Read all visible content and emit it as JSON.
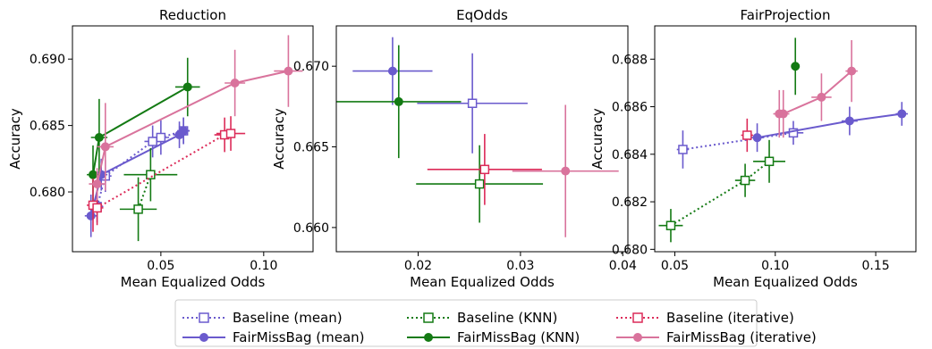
{
  "colors": {
    "Baseline (mean)": "#6a5acd",
    "FairMissBag (mean)": "#6a5acd",
    "Baseline (KNN)": "#137a13",
    "FairMissBag (KNN)": "#137a13",
    "Baseline (iterative)": "#dc2a58",
    "FairMissBag (iterative)": "#d9739c"
  },
  "chart_data": [
    {
      "type": "scatter",
      "title": "Reduction",
      "xlabel": "Mean Equalized Odds",
      "ylabel": "Accuracy",
      "xlim": [
        0.007,
        0.124
      ],
      "ylim": [
        0.6755,
        0.6925
      ],
      "xticks": [
        0.05,
        0.1
      ],
      "xtick_labels": [
        "0.05",
        "0.10"
      ],
      "yticks": [
        0.68,
        0.685,
        0.69
      ],
      "ytick_labels": [
        "0.680",
        "0.685",
        "0.690"
      ],
      "grid": false,
      "series": [
        {
          "name": "Baseline (mean)",
          "style": "dotted",
          "marker": "open-square",
          "points": [
            {
              "x": 0.019,
              "y": 0.6789,
              "xerr": 0.003,
              "yerr": 0.0012
            },
            {
              "x": 0.023,
              "y": 0.6812,
              "xerr": 0.003,
              "yerr": 0.0012
            },
            {
              "x": 0.046,
              "y": 0.6838,
              "xerr": 0.004,
              "yerr": 0.0012
            },
            {
              "x": 0.05,
              "y": 0.6841,
              "xerr": 0.004,
              "yerr": 0.0013
            },
            {
              "x": 0.061,
              "y": 0.6846,
              "xerr": 0.003,
              "yerr": 0.001
            }
          ]
        },
        {
          "name": "FairMissBag (mean)",
          "style": "solid",
          "marker": "filled-circle",
          "points": [
            {
              "x": 0.016,
              "y": 0.6782,
              "xerr": 0.003,
              "yerr": 0.0016
            },
            {
              "x": 0.021,
              "y": 0.6813,
              "xerr": 0.003,
              "yerr": 0.0012
            },
            {
              "x": 0.059,
              "y": 0.6843,
              "xerr": 0.003,
              "yerr": 0.001
            },
            {
              "x": 0.061,
              "y": 0.6846,
              "xerr": 0.003,
              "yerr": 0.001
            }
          ]
        },
        {
          "name": "Baseline (KNN)",
          "style": "dotted",
          "marker": "open-square",
          "points": [
            {
              "x": 0.039,
              "y": 0.6787,
              "xerr": 0.009,
              "yerr": 0.0024
            },
            {
              "x": 0.045,
              "y": 0.6813,
              "xerr": 0.013,
              "yerr": 0.002
            }
          ]
        },
        {
          "name": "FairMissBag (KNN)",
          "style": "solid",
          "marker": "filled-circle",
          "points": [
            {
              "x": 0.017,
              "y": 0.6813,
              "xerr": 0.003,
              "yerr": 0.0022
            },
            {
              "x": 0.02,
              "y": 0.6841,
              "xerr": 0.004,
              "yerr": 0.0029
            },
            {
              "x": 0.063,
              "y": 0.6879,
              "xerr": 0.006,
              "yerr": 0.0022
            }
          ]
        },
        {
          "name": "Baseline (iterative)",
          "style": "dotted",
          "marker": "open-square",
          "points": [
            {
              "x": 0.017,
              "y": 0.679,
              "xerr": 0.003,
              "yerr": 0.002
            },
            {
              "x": 0.019,
              "y": 0.6788,
              "xerr": 0.003,
              "yerr": 0.0013
            },
            {
              "x": 0.081,
              "y": 0.6843,
              "xerr": 0.005,
              "yerr": 0.0013
            },
            {
              "x": 0.084,
              "y": 0.6844,
              "xerr": 0.007,
              "yerr": 0.0013
            }
          ]
        },
        {
          "name": "FairMissBag (iterative)",
          "style": "solid",
          "marker": "filled-circle",
          "points": [
            {
              "x": 0.019,
              "y": 0.6806,
              "xerr": 0.004,
              "yerr": 0.0012
            },
            {
              "x": 0.023,
              "y": 0.6834,
              "xerr": 0.004,
              "yerr": 0.0033
            },
            {
              "x": 0.086,
              "y": 0.6882,
              "xerr": 0.005,
              "yerr": 0.0025
            },
            {
              "x": 0.112,
              "y": 0.6891,
              "xerr": 0.007,
              "yerr": 0.0027
            }
          ]
        }
      ]
    },
    {
      "type": "scatter",
      "title": "EqOdds",
      "xlabel": "Mean Equalized Odds",
      "ylabel": "Accuracy",
      "xlim": [
        0.012,
        0.0405
      ],
      "ylim": [
        0.6585,
        0.6725
      ],
      "xticks": [
        0.02,
        0.03,
        0.04
      ],
      "xtick_labels": [
        "0.02",
        "0.03",
        "0.04"
      ],
      "yticks": [
        0.66,
        0.665,
        0.67
      ],
      "ytick_labels": [
        "0.660",
        "0.665",
        "0.670"
      ],
      "grid": false,
      "series": [
        {
          "name": "Baseline (mean)",
          "style": "dotted",
          "marker": "open-square",
          "points": [
            {
              "x": 0.0253,
              "y": 0.6677,
              "xerr": 0.0054,
              "yerr": 0.0031
            }
          ]
        },
        {
          "name": "FairMissBag (mean)",
          "style": "solid",
          "marker": "filled-circle",
          "points": [
            {
              "x": 0.0175,
              "y": 0.6697,
              "xerr": 0.0039,
              "yerr": 0.0021
            }
          ]
        },
        {
          "name": "Baseline (KNN)",
          "style": "dotted",
          "marker": "open-square",
          "points": [
            {
              "x": 0.026,
              "y": 0.6627,
              "xerr": 0.0062,
              "yerr": 0.0024
            }
          ]
        },
        {
          "name": "FairMissBag (KNN)",
          "style": "solid",
          "marker": "filled-circle",
          "points": [
            {
              "x": 0.0181,
              "y": 0.6678,
              "xerr": 0.0061,
              "yerr": 0.0035
            }
          ]
        },
        {
          "name": "Baseline (iterative)",
          "style": "dotted",
          "marker": "open-square",
          "points": [
            {
              "x": 0.0265,
              "y": 0.6636,
              "xerr": 0.0056,
              "yerr": 0.0022
            }
          ]
        },
        {
          "name": "FairMissBag (iterative)",
          "style": "solid",
          "marker": "filled-circle",
          "points": [
            {
              "x": 0.0344,
              "y": 0.6635,
              "xerr": 0.0052,
              "yerr": 0.0041
            }
          ]
        }
      ]
    },
    {
      "type": "scatter",
      "title": "FairProjection",
      "xlabel": "Mean Equalized Odds",
      "ylabel": "Accuracy",
      "xlim": [
        0.04,
        0.17
      ],
      "ylim": [
        0.6799,
        0.6894
      ],
      "xticks": [
        0.05,
        0.1,
        0.15
      ],
      "xtick_labels": [
        "0.05",
        "0.10",
        "0.15"
      ],
      "yticks": [
        0.68,
        0.682,
        0.684,
        0.686,
        0.688
      ],
      "ytick_labels": [
        "0.680",
        "0.682",
        "0.684",
        "0.686",
        "0.688"
      ],
      "grid": false,
      "series": [
        {
          "name": "Baseline (mean)",
          "style": "dotted",
          "marker": "open-square",
          "points": [
            {
              "x": 0.054,
              "y": 0.6842,
              "xerr": 0.003,
              "yerr": 0.0008
            },
            {
              "x": 0.109,
              "y": 0.6849,
              "xerr": 0.005,
              "yerr": 0.0005
            }
          ]
        },
        {
          "name": "FairMissBag (mean)",
          "style": "solid",
          "marker": "filled-circle",
          "points": [
            {
              "x": 0.091,
              "y": 0.6847,
              "xerr": 0.003,
              "yerr": 0.0006
            },
            {
              "x": 0.137,
              "y": 0.6854,
              "xerr": 0.004,
              "yerr": 0.0006
            },
            {
              "x": 0.163,
              "y": 0.6857,
              "xerr": 0.003,
              "yerr": 0.0005
            }
          ]
        },
        {
          "name": "Baseline (KNN)",
          "style": "dotted",
          "marker": "open-square",
          "points": [
            {
              "x": 0.048,
              "y": 0.681,
              "xerr": 0.006,
              "yerr": 0.0007
            },
            {
              "x": 0.085,
              "y": 0.6829,
              "xerr": 0.005,
              "yerr": 0.0007
            },
            {
              "x": 0.097,
              "y": 0.6837,
              "xerr": 0.008,
              "yerr": 0.0009
            }
          ]
        },
        {
          "name": "FairMissBag (KNN)",
          "style": "solid",
          "marker": "filled-circle",
          "points": [
            {
              "x": 0.11,
              "y": 0.6877,
              "xerr": 0.0,
              "yerr": 0.0012
            }
          ]
        },
        {
          "name": "Baseline (iterative)",
          "style": "dotted",
          "marker": "open-square",
          "points": [
            {
              "x": 0.086,
              "y": 0.6848,
              "xerr": 0.003,
              "yerr": 0.0007
            }
          ]
        },
        {
          "name": "FairMissBag (iterative)",
          "style": "solid",
          "marker": "filled-circle",
          "points": [
            {
              "x": 0.102,
              "y": 0.6857,
              "xerr": 0.003,
              "yerr": 0.001
            },
            {
              "x": 0.104,
              "y": 0.6857,
              "xerr": 0.003,
              "yerr": 0.001
            },
            {
              "x": 0.123,
              "y": 0.6864,
              "xerr": 0.005,
              "yerr": 0.001
            },
            {
              "x": 0.138,
              "y": 0.6875,
              "xerr": 0.003,
              "yerr": 0.0013
            }
          ]
        }
      ]
    }
  ],
  "legend": {
    "placement": "bottom-center",
    "items": [
      {
        "label": "Baseline (mean)",
        "style": "dotted",
        "marker": "open-square"
      },
      {
        "label": "Baseline (KNN)",
        "style": "dotted",
        "marker": "open-square"
      },
      {
        "label": "Baseline (iterative)",
        "style": "dotted",
        "marker": "open-square"
      },
      {
        "label": "FairMissBag (mean)",
        "style": "solid",
        "marker": "filled-circle"
      },
      {
        "label": "FairMissBag (KNN)",
        "style": "solid",
        "marker": "filled-circle"
      },
      {
        "label": "FairMissBag (iterative)",
        "style": "solid",
        "marker": "filled-circle"
      }
    ]
  }
}
